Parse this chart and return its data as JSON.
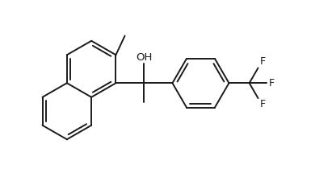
{
  "background": "#ffffff",
  "line_color": "#1a1a1a",
  "line_width": 1.4,
  "font_size": 9.5,
  "figsize": [
    4.11,
    2.25
  ],
  "dpi": 100,
  "xlim": [
    0,
    8.2
  ],
  "ylim": [
    0,
    4.6
  ]
}
